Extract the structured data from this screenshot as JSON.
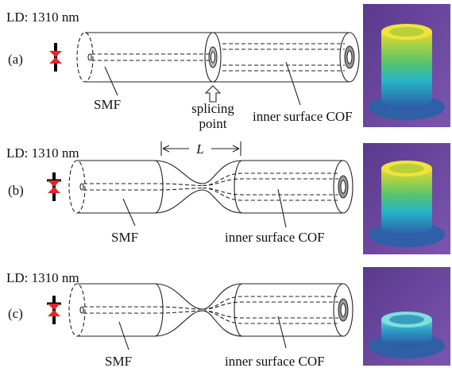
{
  "panels": [
    {
      "label": "(a)",
      "source": "LD: 1310 nm",
      "left_fiber": "SMF",
      "right_fiber": "inner surface COF",
      "joint": [
        "splicing",
        "point"
      ]
    },
    {
      "label": "(b)",
      "source": "LD: 1310 nm",
      "left_fiber": "SMF",
      "right_fiber": "inner surface COF",
      "taper_length": "L"
    },
    {
      "label": "(c)",
      "source": "LD: 1310 nm",
      "left_fiber": "SMF",
      "right_fiber": "inner surface COF"
    }
  ]
}
